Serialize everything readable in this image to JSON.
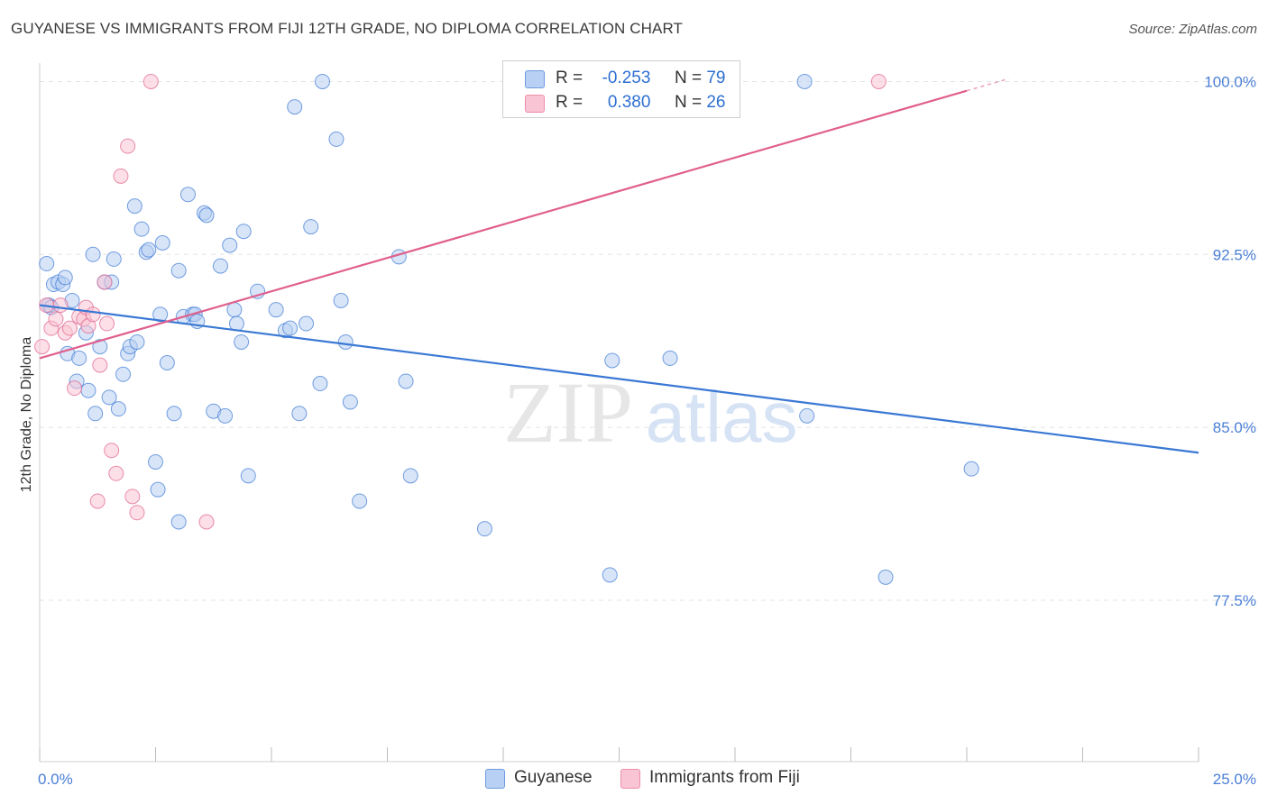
{
  "title": "GUYANESE VS IMMIGRANTS FROM FIJI 12TH GRADE, NO DIPLOMA CORRELATION CHART",
  "source": "Source: ZipAtlas.com",
  "watermark": {
    "zip": "ZIP",
    "atlas": "atlas"
  },
  "legend": {
    "r_label": "R =",
    "n_label": "N =",
    "rows": [
      {
        "r": "-0.253",
        "n": "79",
        "fill": "#b8d0f3",
        "stroke": "#6f9be0"
      },
      {
        "r": "0.380",
        "n": "26",
        "fill": "#f9c4d3",
        "stroke": "#ec8fab"
      }
    ]
  },
  "chart_data": {
    "type": "scatter",
    "title": "GUYANESE VS IMMIGRANTS FROM FIJI 12TH GRADE, NO DIPLOMA CORRELATION CHART",
    "xlabel": "",
    "ylabel": "12th Grade, No Diploma",
    "xlim": [
      0,
      25
    ],
    "ylim": [
      70.5,
      100.8
    ],
    "x_tick_labels": [
      {
        "value": 0,
        "label": "0.0%"
      },
      {
        "value": 25,
        "label": "25.0%"
      }
    ],
    "y_tick_labels": [
      {
        "value": 100,
        "label": "100.0%"
      },
      {
        "value": 92.5,
        "label": "92.5%"
      },
      {
        "value": 85,
        "label": "85.0%"
      },
      {
        "value": 77.5,
        "label": "77.5%"
      }
    ],
    "grid": true,
    "legend_position": "top-center",
    "series": [
      {
        "name": "Guyanese",
        "color": "#3a78d4",
        "fill": "#b8d0f3",
        "trend": {
          "x": [
            0,
            25
          ],
          "y": [
            90.3,
            83.9
          ]
        },
        "points": [
          {
            "x": 0.15,
            "y": 92.1
          },
          {
            "x": 0.2,
            "y": 90.3
          },
          {
            "x": 0.3,
            "y": 91.2
          },
          {
            "x": 0.4,
            "y": 91.3
          },
          {
            "x": 0.5,
            "y": 91.2
          },
          {
            "x": 0.55,
            "y": 91.5
          },
          {
            "x": 0.6,
            "y": 88.2
          },
          {
            "x": 0.7,
            "y": 90.5
          },
          {
            "x": 0.8,
            "y": 87.0
          },
          {
            "x": 0.85,
            "y": 88.0
          },
          {
            "x": 1.0,
            "y": 89.1
          },
          {
            "x": 1.05,
            "y": 86.6
          },
          {
            "x": 1.15,
            "y": 92.5
          },
          {
            "x": 1.2,
            "y": 85.6
          },
          {
            "x": 1.3,
            "y": 88.5
          },
          {
            "x": 1.4,
            "y": 91.3
          },
          {
            "x": 1.5,
            "y": 86.3
          },
          {
            "x": 1.55,
            "y": 91.3
          },
          {
            "x": 1.6,
            "y": 92.3
          },
          {
            "x": 1.7,
            "y": 85.8
          },
          {
            "x": 1.8,
            "y": 87.3
          },
          {
            "x": 1.9,
            "y": 88.2
          },
          {
            "x": 1.95,
            "y": 88.5
          },
          {
            "x": 2.05,
            "y": 94.6
          },
          {
            "x": 2.1,
            "y": 88.7
          },
          {
            "x": 2.2,
            "y": 93.6
          },
          {
            "x": 2.3,
            "y": 92.6
          },
          {
            "x": 2.35,
            "y": 92.7
          },
          {
            "x": 2.5,
            "y": 83.5
          },
          {
            "x": 2.55,
            "y": 82.3
          },
          {
            "x": 2.6,
            "y": 89.9
          },
          {
            "x": 2.65,
            "y": 93.0
          },
          {
            "x": 2.75,
            "y": 87.8
          },
          {
            "x": 2.9,
            "y": 85.6
          },
          {
            "x": 3.0,
            "y": 80.9
          },
          {
            "x": 3.0,
            "y": 91.8
          },
          {
            "x": 3.1,
            "y": 89.8
          },
          {
            "x": 3.2,
            "y": 95.1
          },
          {
            "x": 3.3,
            "y": 89.9
          },
          {
            "x": 3.35,
            "y": 89.9
          },
          {
            "x": 3.4,
            "y": 89.6
          },
          {
            "x": 3.55,
            "y": 94.3
          },
          {
            "x": 3.6,
            "y": 94.2
          },
          {
            "x": 3.75,
            "y": 85.7
          },
          {
            "x": 3.9,
            "y": 92.0
          },
          {
            "x": 4.0,
            "y": 85.5
          },
          {
            "x": 4.1,
            "y": 92.9
          },
          {
            "x": 4.2,
            "y": 90.1
          },
          {
            "x": 4.25,
            "y": 89.5
          },
          {
            "x": 4.35,
            "y": 88.7
          },
          {
            "x": 4.4,
            "y": 93.5
          },
          {
            "x": 4.5,
            "y": 82.9
          },
          {
            "x": 4.7,
            "y": 90.9
          },
          {
            "x": 5.1,
            "y": 90.1
          },
          {
            "x": 5.3,
            "y": 89.2
          },
          {
            "x": 5.4,
            "y": 89.3
          },
          {
            "x": 5.5,
            "y": 98.9
          },
          {
            "x": 5.6,
            "y": 85.6
          },
          {
            "x": 5.75,
            "y": 89.5
          },
          {
            "x": 5.85,
            "y": 93.7
          },
          {
            "x": 6.05,
            "y": 86.9
          },
          {
            "x": 6.1,
            "y": 100.0
          },
          {
            "x": 6.4,
            "y": 97.5
          },
          {
            "x": 6.5,
            "y": 90.5
          },
          {
            "x": 6.6,
            "y": 88.7
          },
          {
            "x": 6.7,
            "y": 86.1
          },
          {
            "x": 6.9,
            "y": 81.8
          },
          {
            "x": 7.75,
            "y": 92.4
          },
          {
            "x": 7.9,
            "y": 87.0
          },
          {
            "x": 8.0,
            "y": 82.9
          },
          {
            "x": 9.6,
            "y": 80.6
          },
          {
            "x": 12.3,
            "y": 78.6
          },
          {
            "x": 12.35,
            "y": 87.9
          },
          {
            "x": 13.6,
            "y": 88.0
          },
          {
            "x": 16.5,
            "y": 100.0
          },
          {
            "x": 16.55,
            "y": 85.5
          },
          {
            "x": 18.25,
            "y": 78.5
          },
          {
            "x": 20.1,
            "y": 83.2
          },
          {
            "x": 0.25,
            "y": 90.2
          }
        ]
      },
      {
        "name": "Immigrants from Fiji",
        "color": "#e05f8d",
        "fill": "#f9c4d3",
        "trend": {
          "x": [
            0,
            20
          ],
          "y": [
            88.0,
            99.6
          ]
        },
        "points": [
          {
            "x": 0.05,
            "y": 88.5
          },
          {
            "x": 0.15,
            "y": 90.3
          },
          {
            "x": 0.25,
            "y": 89.3
          },
          {
            "x": 0.35,
            "y": 89.7
          },
          {
            "x": 0.45,
            "y": 90.3
          },
          {
            "x": 0.55,
            "y": 89.1
          },
          {
            "x": 0.65,
            "y": 89.3
          },
          {
            "x": 0.75,
            "y": 86.7
          },
          {
            "x": 0.85,
            "y": 89.8
          },
          {
            "x": 0.95,
            "y": 89.7
          },
          {
            "x": 1.0,
            "y": 90.2
          },
          {
            "x": 1.05,
            "y": 89.4
          },
          {
            "x": 1.15,
            "y": 89.9
          },
          {
            "x": 1.25,
            "y": 81.8
          },
          {
            "x": 1.3,
            "y": 87.7
          },
          {
            "x": 1.4,
            "y": 91.3
          },
          {
            "x": 1.45,
            "y": 89.5
          },
          {
            "x": 1.55,
            "y": 84.0
          },
          {
            "x": 1.65,
            "y": 83.0
          },
          {
            "x": 1.75,
            "y": 95.9
          },
          {
            "x": 1.9,
            "y": 97.2
          },
          {
            "x": 2.0,
            "y": 82.0
          },
          {
            "x": 2.1,
            "y": 81.3
          },
          {
            "x": 2.4,
            "y": 100.0
          },
          {
            "x": 3.6,
            "y": 80.9
          },
          {
            "x": 18.1,
            "y": 100.0
          }
        ]
      }
    ]
  }
}
